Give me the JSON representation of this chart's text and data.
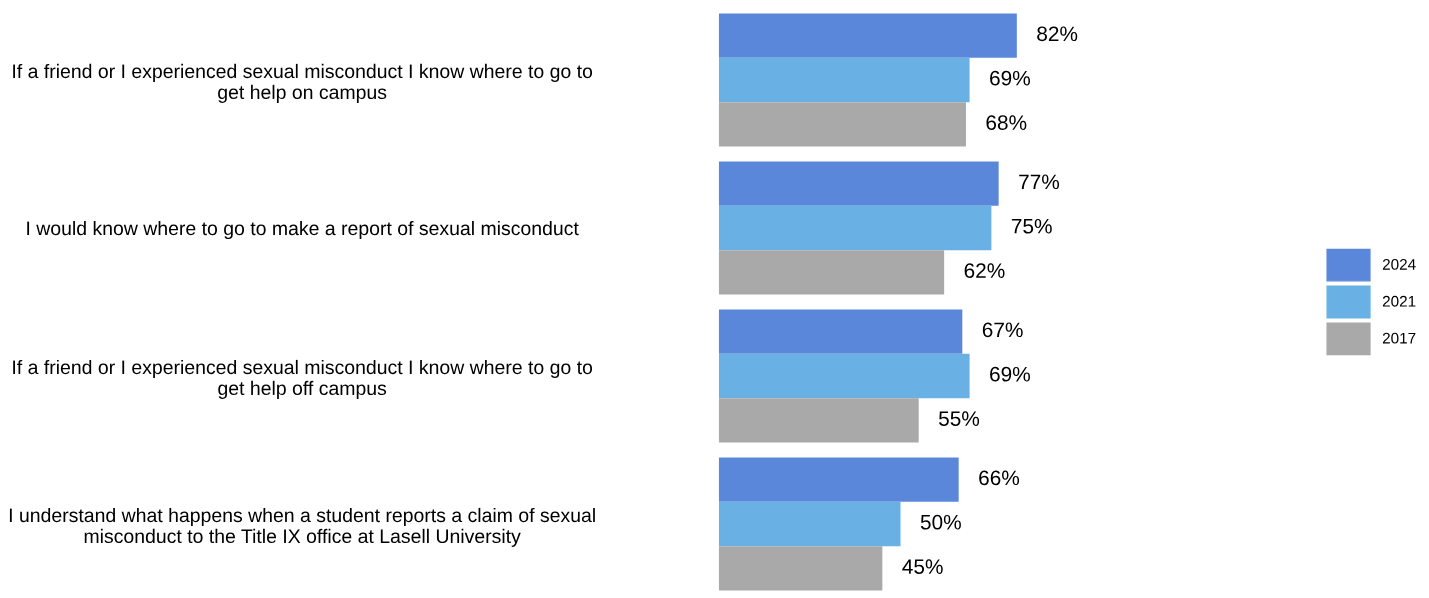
{
  "chart_data": {
    "type": "bar",
    "orientation": "horizontal",
    "legend": "right",
    "grid": false,
    "tick_labels": "y",
    "categories": [
      "If a friend or I experienced sexual misconduct I know where to go to\nget help on campus",
      "I would know where to go to make a report of sexual misconduct",
      "If a friend or I experienced sexual misconduct I know where to go to\nget help off campus",
      "I understand what happens when a student reports a claim of sexual\nmisconduct to the Title IX office at Lasell University"
    ],
    "series": [
      {
        "name": "2024",
        "color": "#5b87da",
        "values": [
          82,
          77,
          67,
          66
        ],
        "value_labels": [
          "82%",
          "77%",
          "67%",
          "66%"
        ]
      },
      {
        "name": "2021",
        "color": "#69b1e4",
        "values": [
          69,
          75,
          69,
          50
        ],
        "value_labels": [
          "69%",
          "75%",
          "69%",
          "50%"
        ]
      },
      {
        "name": "2017",
        "color": "#a9a9a9",
        "values": [
          68,
          62,
          55,
          45
        ],
        "value_labels": [
          "68%",
          "62%",
          "55%",
          "45%"
        ]
      }
    ]
  }
}
